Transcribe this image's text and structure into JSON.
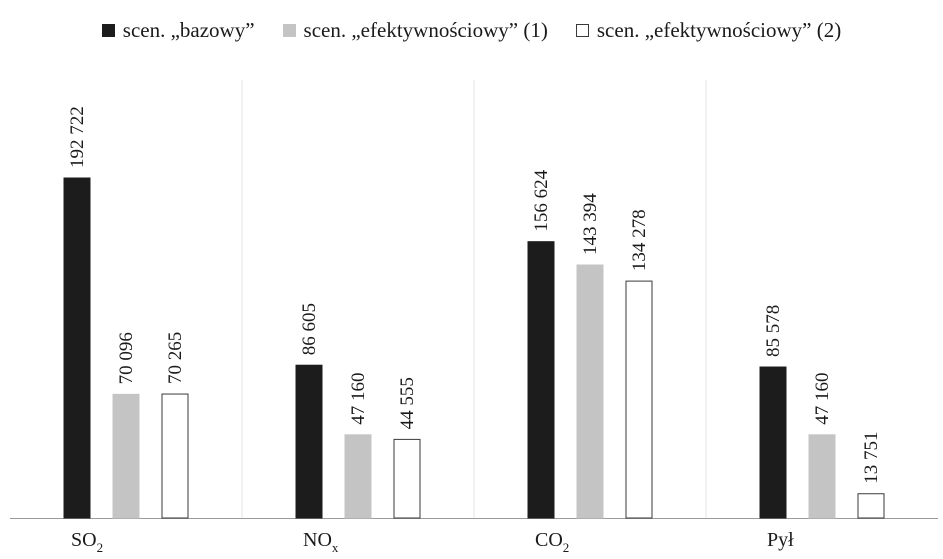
{
  "chart_data": {
    "type": "bar",
    "categories": [
      {
        "main": "SO",
        "sub": "2"
      },
      {
        "main": "NO",
        "sub": "x"
      },
      {
        "main": "CO",
        "sub": "2"
      },
      {
        "main": "Pył",
        "sub": ""
      }
    ],
    "series": [
      {
        "name": "scen. „bazowy”",
        "color": "#1c1c1c",
        "stroke": "#1c1c1c",
        "values": [
          192722,
          86605,
          156624,
          85578
        ],
        "labels": [
          "192 722",
          "86 605",
          "156 624",
          "85 578"
        ]
      },
      {
        "name": "scen. „efektywnościowy” (1)",
        "color": "#c4c4c4",
        "stroke": "#c4c4c4",
        "values": [
          70096,
          47160,
          143394,
          47160
        ],
        "labels": [
          "70 096",
          "47 160",
          "143 394",
          "47 160"
        ]
      },
      {
        "name": "scen. „efektywnościowy” (2)",
        "color": "#ffffff",
        "stroke": "#3a3a3a",
        "values": [
          70265,
          44555,
          134278,
          13751
        ],
        "labels": [
          "70 265",
          "44 555",
          "134 278",
          "13 751"
        ]
      }
    ],
    "title": "",
    "xlabel": "",
    "ylabel": "",
    "ylim": [
      0,
      192722
    ],
    "grid": false,
    "legend": "top"
  }
}
